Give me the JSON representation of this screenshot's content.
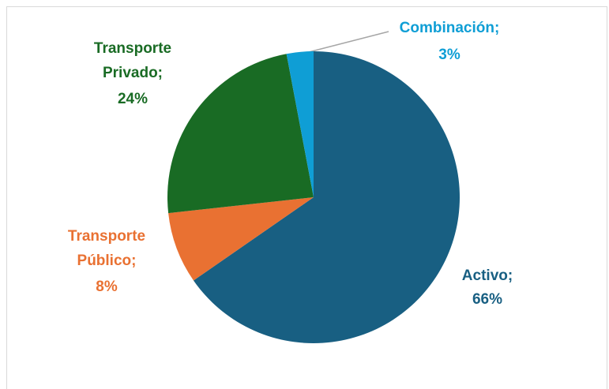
{
  "chart_data": {
    "type": "pie",
    "categories": [
      "Activo;",
      "Transporte Público;",
      "Transporte Privado;",
      "Combinación;"
    ],
    "values": [
      66,
      8,
      24,
      3
    ],
    "value_labels": [
      "66%",
      "8%",
      "24%",
      "3%"
    ],
    "colors": [
      "#185f82",
      "#e97132",
      "#196b24",
      "#0f9ed5"
    ]
  }
}
